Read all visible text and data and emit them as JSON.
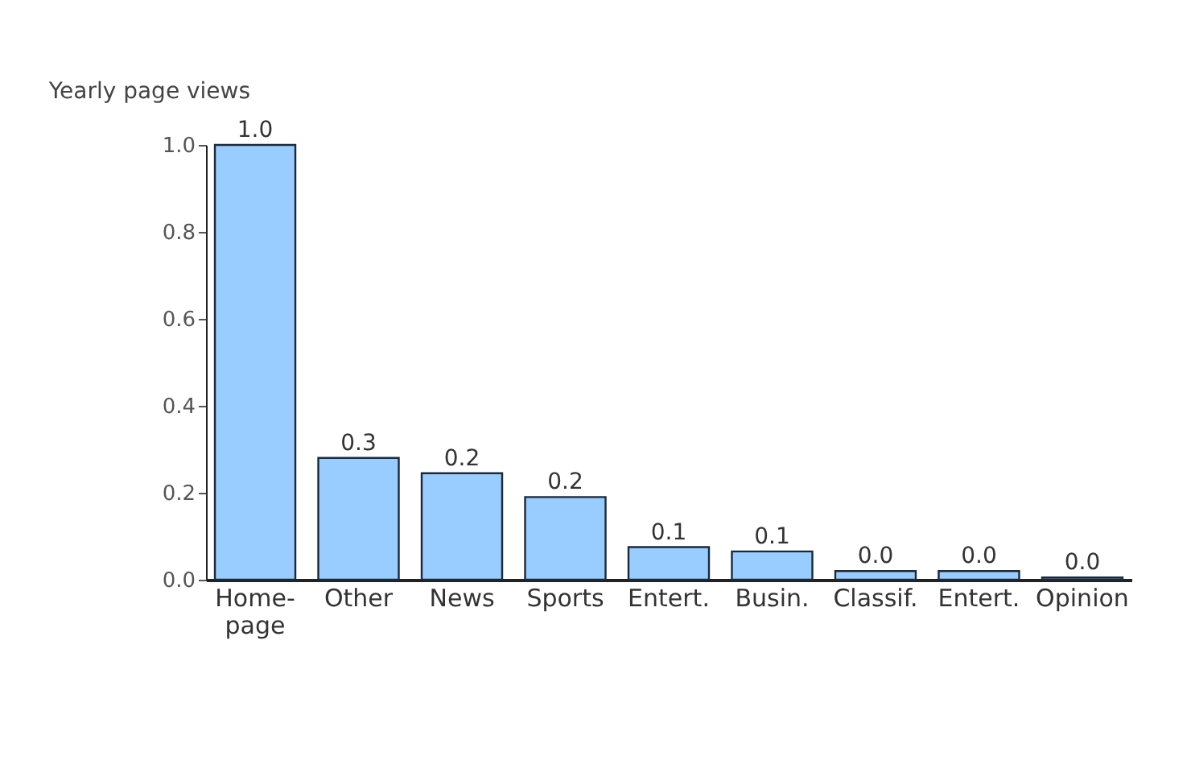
{
  "chart_data": {
    "type": "bar",
    "title": "Yearly page views",
    "categories": [
      "Home-\npage",
      "Other",
      "News",
      "Sports",
      "Entert.",
      "Busin.",
      "Classif.",
      "Entert.",
      "Opinion"
    ],
    "values": [
      1.0,
      0.28,
      0.245,
      0.19,
      0.075,
      0.065,
      0.02,
      0.02,
      0.005
    ],
    "value_labels": [
      "1.0",
      "0.3",
      "0.2",
      "0.2",
      "0.1",
      "0.1",
      "0.0",
      "0.0",
      "0.0"
    ],
    "color": "#99ccff",
    "ylim": [
      0,
      1.0
    ],
    "yticks": [
      {
        "value": 0,
        "label": "0.0"
      },
      {
        "value": 0.2,
        "label": "0.2"
      },
      {
        "value": 0.4,
        "label": "0.4"
      },
      {
        "value": 0.6,
        "label": "0.6"
      },
      {
        "value": 0.8,
        "label": "0.8"
      },
      {
        "value": 1.0,
        "label": "1.0"
      }
    ],
    "grid": false
  }
}
